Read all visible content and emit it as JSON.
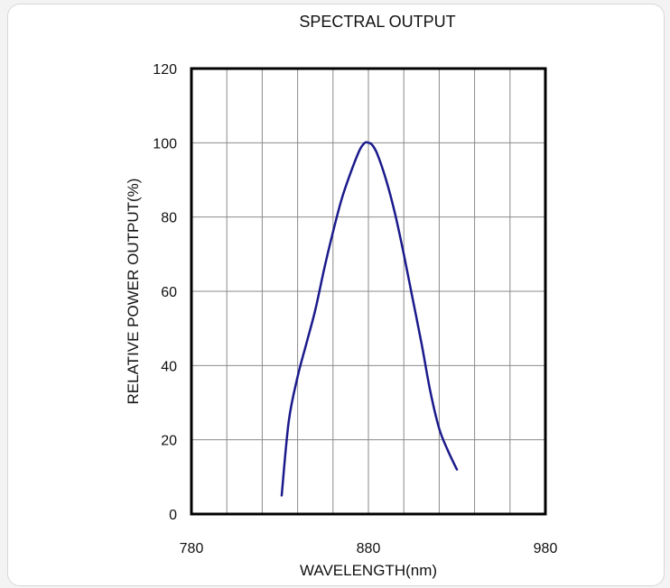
{
  "chart_data": {
    "type": "line",
    "title": "SPECTRAL OUTPUT",
    "xlabel": "WAVELENGTH(nm)",
    "ylabel": "RELATIVE POWER OUTPUT(%)",
    "xlim": [
      780,
      980
    ],
    "ylim": [
      0,
      120
    ],
    "x_ticks": [
      780,
      880,
      980
    ],
    "y_ticks": [
      0,
      20,
      40,
      60,
      80,
      100,
      120
    ],
    "x_grid_step": 20,
    "y_grid_step": 20,
    "grid": true,
    "line_color": "#1a1a8c",
    "series": [
      {
        "x": [
          831,
          835,
          840,
          845,
          850,
          855,
          860,
          865,
          870,
          875,
          878,
          880,
          882,
          885,
          890,
          895,
          900,
          905,
          910,
          915,
          920,
          925,
          930
        ],
        "values": [
          5,
          25,
          37,
          46,
          55,
          66,
          76,
          85,
          92,
          98,
          100,
          100,
          99.5,
          97,
          90,
          81,
          70,
          58,
          46,
          33,
          23,
          17,
          12
        ]
      }
    ]
  }
}
